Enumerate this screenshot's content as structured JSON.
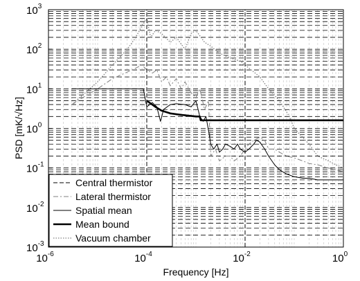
{
  "chart_data": {
    "type": "line",
    "xlabel": "Frequency [Hz]",
    "ylabel": "PSD [mK/√Hz]",
    "x_scale": "log",
    "y_scale": "log",
    "xlim": [
      1e-06,
      1
    ],
    "ylim": [
      0.001,
      1000
    ],
    "x_ticks": [
      {
        "value": 1e-06,
        "base": "10",
        "exp": "-6"
      },
      {
        "value": 0.0001,
        "base": "10",
        "exp": "-4"
      },
      {
        "value": 0.01,
        "base": "10",
        "exp": "-2"
      },
      {
        "value": 1,
        "base": "10",
        "exp": "0"
      }
    ],
    "y_ticks": [
      {
        "value": 0.001,
        "base": "10",
        "exp": "-3"
      },
      {
        "value": 0.01,
        "base": "10",
        "exp": "-2"
      },
      {
        "value": 0.1,
        "base": "10",
        "exp": "-1"
      },
      {
        "value": 1,
        "base": "10",
        "exp": "0"
      },
      {
        "value": 10,
        "base": "10",
        "exp": "1"
      },
      {
        "value": 100,
        "base": "10",
        "exp": "2"
      },
      {
        "value": 1000,
        "base": "10",
        "exp": "3"
      }
    ],
    "grid": true,
    "legend_position": "bottom-left",
    "series": [
      {
        "name": "Central thermistor",
        "style": "dashed",
        "color": "#000000",
        "x": [
          0.0001,
          0.0001,
          0.0001,
          0.01,
          0.01,
          0.01
        ],
        "y": [
          0.001,
          10,
          1000,
          0.001,
          10,
          1000
        ]
      },
      {
        "name": "Lateral thermistor",
        "style": "dashdot",
        "color": "#808080",
        "x": [
          3e-06,
          5e-06,
          1e-05,
          2e-05,
          5e-05,
          8e-05,
          0.0001,
          0.00013,
          0.00016,
          0.0002,
          0.00025,
          0.0003,
          0.0004,
          0.0005,
          0.0006,
          0.0008,
          0.001,
          0.0012,
          0.0015,
          0.0018,
          0.002,
          0.0025,
          0.003,
          0.004,
          0.005,
          0.006,
          0.008,
          0.01,
          0.012,
          0.015,
          0.02,
          0.025,
          0.03,
          0.04,
          0.05,
          0.07,
          0.1,
          0.15,
          0.2,
          0.3,
          0.5,
          0.7,
          1
        ],
        "y": [
          4,
          6,
          10,
          18,
          30,
          40,
          30,
          25,
          30,
          15,
          20,
          12,
          18,
          10,
          15,
          8,
          6,
          10,
          3,
          5,
          0.2,
          0.3,
          0.15,
          0.2,
          0.2,
          0.15,
          0.2,
          0.3,
          0.4,
          0.5,
          0.6,
          0.5,
          0.3,
          0.3,
          0.25,
          0.2,
          0.18,
          0.15,
          0.13,
          0.12,
          0.1,
          0.09,
          0.08
        ]
      },
      {
        "name": "Spatial mean",
        "style": "solid",
        "color": "#000000",
        "x": [
          3e-06,
          8.5e-05,
          0.0001,
          0.00013,
          0.00016,
          0.00019,
          0.00022,
          0.0003,
          0.0004,
          0.0006,
          0.0008,
          0.001,
          0.0012,
          0.0014,
          0.0016,
          0.0018,
          0.002,
          0.0023,
          0.0027,
          0.003,
          0.0035,
          0.004,
          0.005,
          0.006,
          0.007,
          0.008,
          0.01,
          0.012,
          0.015,
          0.017,
          0.02,
          0.025,
          0.03,
          0.04,
          0.05,
          0.07,
          0.1,
          0.15,
          0.2,
          0.3,
          0.5,
          0.7,
          1
        ],
        "y": [
          10,
          10,
          3.5,
          4.5,
          3.5,
          1.5,
          3,
          4,
          4.2,
          4,
          3.5,
          5,
          2,
          1.5,
          2,
          0.9,
          0.4,
          0.3,
          0.4,
          0.25,
          0.3,
          0.4,
          0.35,
          0.3,
          0.4,
          0.3,
          0.25,
          0.3,
          0.4,
          0.5,
          0.45,
          0.3,
          0.2,
          0.12,
          0.09,
          0.07,
          0.06,
          0.055,
          0.055,
          0.05,
          0.05,
          0.05,
          0.05
        ]
      },
      {
        "name": "Mean bound",
        "style": "solid-thick",
        "color": "#000000",
        "x": [
          0.0001,
          0.00015,
          0.0002,
          0.0003,
          0.0005,
          0.0007,
          0.001,
          0.0012,
          0.00125,
          0.01,
          0.1,
          1
        ],
        "y": [
          5,
          3.5,
          2.8,
          2.4,
          2.2,
          2.1,
          2,
          2,
          1.6,
          1.6,
          1.6,
          1.6
        ]
      },
      {
        "name": "Vacuum chamber",
        "style": "dotted",
        "color": "#808080",
        "x": [
          3e-06,
          5e-06,
          1e-05,
          2e-05,
          4e-05,
          6e-05,
          8e-05,
          0.0001,
          0.00012,
          0.00015,
          0.0002,
          0.0003,
          0.0004,
          0.0006,
          0.0008,
          0.001,
          0.0015,
          0.002,
          0.003,
          0.005,
          0.008,
          0.01,
          0.02,
          0.03,
          0.05,
          0.08,
          0.1,
          0.2,
          0.3,
          0.5,
          0.7,
          1
        ],
        "y": [
          4,
          7,
          15,
          40,
          100,
          200,
          400,
          600,
          200,
          300,
          250,
          150,
          200,
          100,
          250,
          300,
          150,
          120,
          80,
          60,
          50,
          40,
          20,
          10,
          5,
          2,
          1,
          0.4,
          0.2,
          0.15,
          0.12,
          0.1
        ]
      }
    ]
  }
}
